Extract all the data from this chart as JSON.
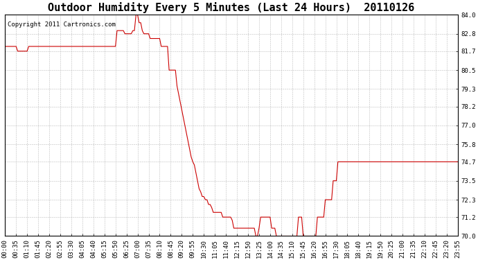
{
  "title": "Outdoor Humidity Every 5 Minutes (Last 24 Hours)  20110126",
  "copyright_text": "Copyright 2011 Cartronics.com",
  "line_color": "#cc0000",
  "background_color": "#ffffff",
  "plot_bg_color": "#ffffff",
  "grid_color": "#aaaaaa",
  "ylim": [
    70.0,
    84.0
  ],
  "yticks": [
    70.0,
    71.2,
    72.3,
    73.5,
    74.7,
    75.8,
    77.0,
    78.2,
    79.3,
    80.5,
    81.7,
    82.8,
    84.0
  ],
  "title_fontsize": 11,
  "copyright_fontsize": 6.5,
  "tick_fontsize": 6.5,
  "humidity_data": [
    82.0,
    82.0,
    82.0,
    82.0,
    82.0,
    82.0,
    82.0,
    82.0,
    81.7,
    81.7,
    81.7,
    81.7,
    81.7,
    81.7,
    81.7,
    82.0,
    82.0,
    82.0,
    82.0,
    82.0,
    82.0,
    82.0,
    82.0,
    82.0,
    82.0,
    82.0,
    82.0,
    82.0,
    82.0,
    82.0,
    82.0,
    82.0,
    82.0,
    82.0,
    82.0,
    82.0,
    82.0,
    82.0,
    82.0,
    82.0,
    82.0,
    82.0,
    82.0,
    82.0,
    82.0,
    82.0,
    82.0,
    82.0,
    82.0,
    82.0,
    82.0,
    82.0,
    82.0,
    82.0,
    82.0,
    82.0,
    82.0,
    82.0,
    82.0,
    82.0,
    82.0,
    82.0,
    82.0,
    82.0,
    82.0,
    82.0,
    82.0,
    82.0,
    82.0,
    82.0,
    82.0,
    83.0,
    83.0,
    83.0,
    83.0,
    83.0,
    82.8,
    82.8,
    82.8,
    82.8,
    82.8,
    83.0,
    83.0,
    84.0,
    84.0,
    83.5,
    83.5,
    83.0,
    82.8,
    82.8,
    82.8,
    82.8,
    82.5,
    82.5,
    82.5,
    82.5,
    82.5,
    82.5,
    82.5,
    82.0,
    82.0,
    82.0,
    82.0,
    82.0,
    80.5,
    80.5,
    80.5,
    80.5,
    80.5,
    79.5,
    79.0,
    78.5,
    78.0,
    77.5,
    77.0,
    76.5,
    76.0,
    75.5,
    75.0,
    74.7,
    74.5,
    74.0,
    73.5,
    73.0,
    72.8,
    72.5,
    72.5,
    72.3,
    72.3,
    72.0,
    72.0,
    71.8,
    71.5,
    71.5,
    71.5,
    71.5,
    71.5,
    71.5,
    71.2,
    71.2,
    71.2,
    71.2,
    71.2,
    71.2,
    71.0,
    70.5,
    70.5,
    70.5,
    70.5,
    70.5,
    70.5,
    70.5,
    70.5,
    70.5,
    70.5,
    70.5,
    70.5,
    70.5,
    70.5,
    70.0,
    70.0,
    70.5,
    71.2,
    71.2,
    71.2,
    71.2,
    71.2,
    71.2,
    71.2,
    70.5,
    70.5,
    70.5,
    70.0,
    70.0,
    70.0,
    70.0,
    70.0,
    70.0,
    70.0,
    70.0,
    70.0,
    70.0,
    70.0,
    70.0,
    70.0,
    70.0,
    71.2,
    71.2,
    71.2,
    70.0,
    70.0,
    70.0,
    70.0,
    70.0,
    70.0,
    70.0,
    70.0,
    70.0,
    71.2,
    71.2,
    71.2,
    71.2,
    71.2,
    72.3,
    72.3,
    72.3,
    72.3,
    72.3,
    73.5,
    73.5,
    73.5,
    74.7,
    74.7,
    74.7,
    74.7,
    74.7,
    74.7,
    74.7,
    74.7,
    74.7,
    74.7,
    74.7,
    74.7,
    74.7,
    74.7,
    74.7,
    74.7,
    74.7,
    74.7,
    74.7,
    74.7,
    74.7,
    74.7,
    74.7,
    74.7,
    74.7,
    74.7,
    74.7,
    74.7,
    74.7,
    74.7,
    74.7,
    74.7,
    74.7,
    74.7,
    74.7,
    74.7,
    74.7,
    74.7,
    74.7,
    74.7,
    74.7,
    74.7,
    74.7,
    74.7,
    74.7,
    74.7,
    74.7,
    74.7,
    74.7,
    74.7,
    74.7,
    74.7,
    74.7,
    74.7,
    74.7,
    74.7,
    74.7,
    74.7,
    74.7,
    74.7,
    74.7,
    74.7,
    74.7,
    74.7,
    74.7,
    74.7,
    74.7,
    74.7,
    74.7,
    74.7,
    74.7,
    74.7,
    74.7,
    74.7,
    74.7,
    74.7,
    74.7,
    74.7,
    74.7
  ]
}
